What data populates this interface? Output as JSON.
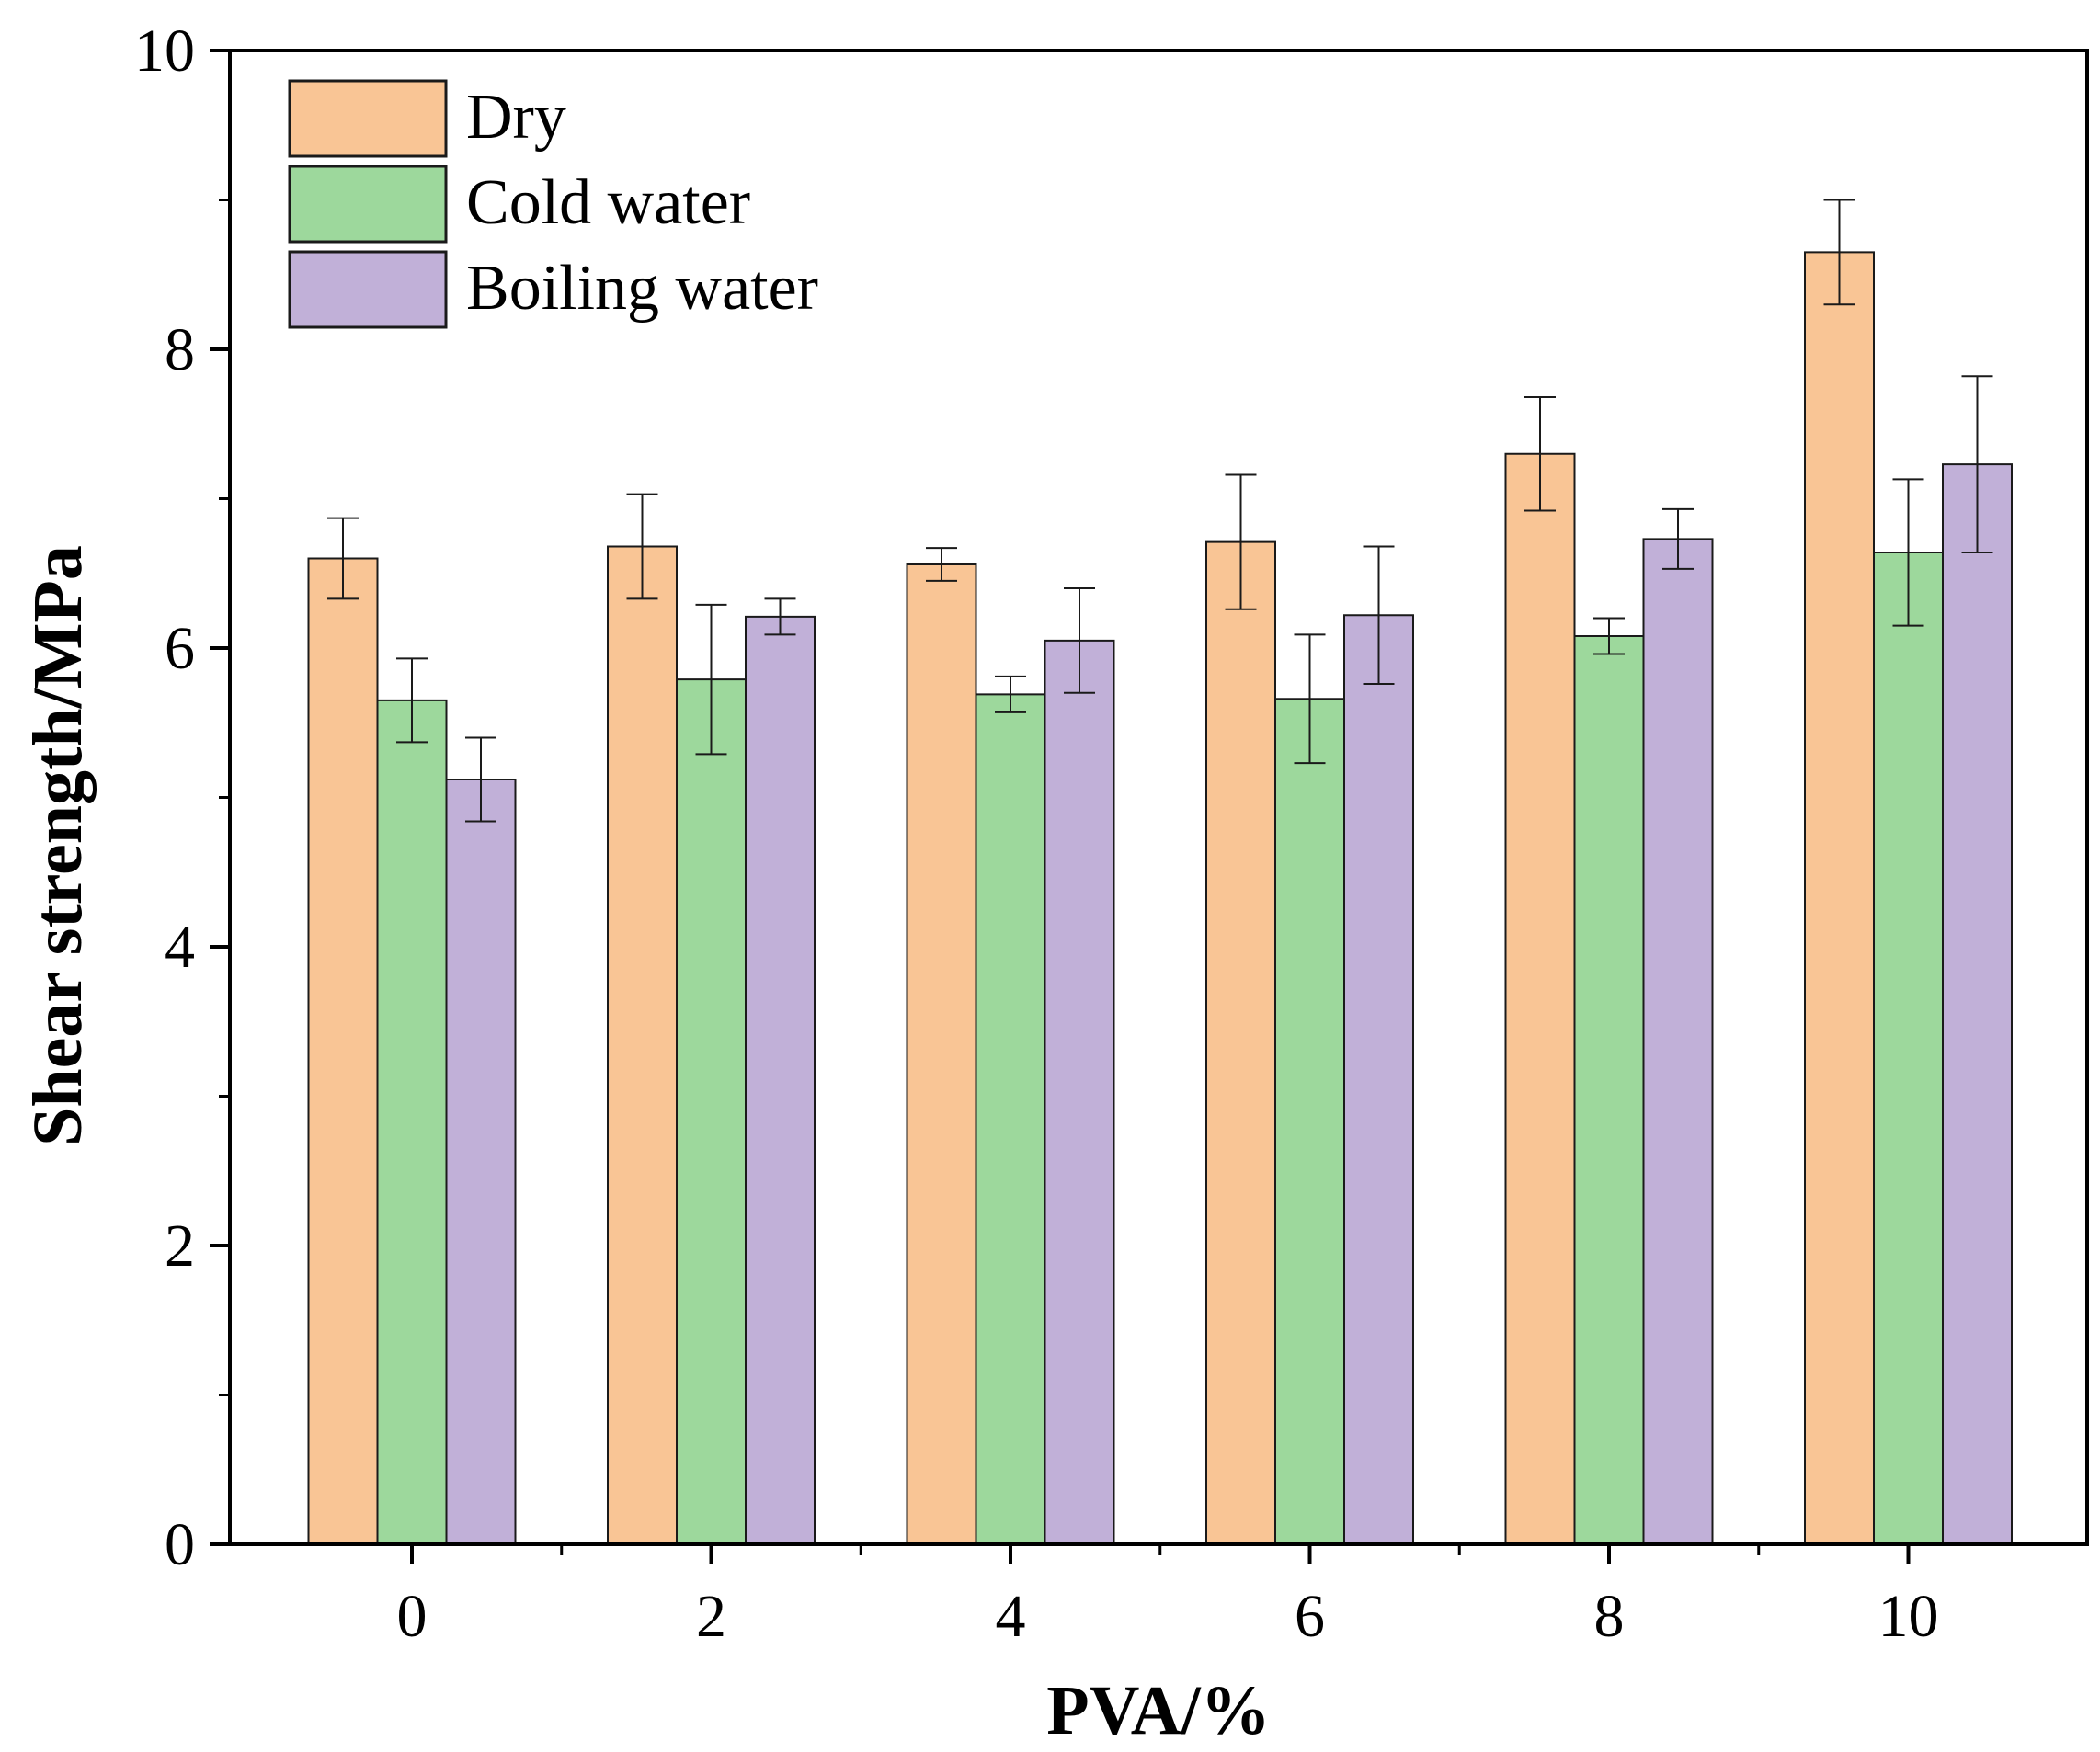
{
  "chart_data": {
    "type": "bar",
    "title": "",
    "xlabel": "PVA/%",
    "ylabel": "Shear strength/MPa",
    "categories": [
      "0",
      "2",
      "4",
      "6",
      "8",
      "10"
    ],
    "ylim": [
      0,
      10
    ],
    "yticks": [
      "0",
      "2",
      "4",
      "6",
      "8",
      "10"
    ],
    "legend_position": "top-left",
    "series": [
      {
        "name": "Dry",
        "color": "#F9C595",
        "values": [
          6.6,
          6.68,
          6.56,
          6.71,
          7.3,
          8.65
        ],
        "errors": [
          0.27,
          0.35,
          0.11,
          0.45,
          0.38,
          0.35
        ]
      },
      {
        "name": "Cold water",
        "color": "#9DD89C",
        "values": [
          5.65,
          5.79,
          5.69,
          5.66,
          6.08,
          6.64
        ],
        "errors": [
          0.28,
          0.5,
          0.12,
          0.43,
          0.12,
          0.49
        ]
      },
      {
        "name": "Boiling water",
        "color": "#C1B0D8",
        "values": [
          5.12,
          6.21,
          6.05,
          6.22,
          6.73,
          7.23
        ],
        "errors": [
          0.28,
          0.12,
          0.35,
          0.46,
          0.2,
          0.59
        ]
      }
    ]
  }
}
